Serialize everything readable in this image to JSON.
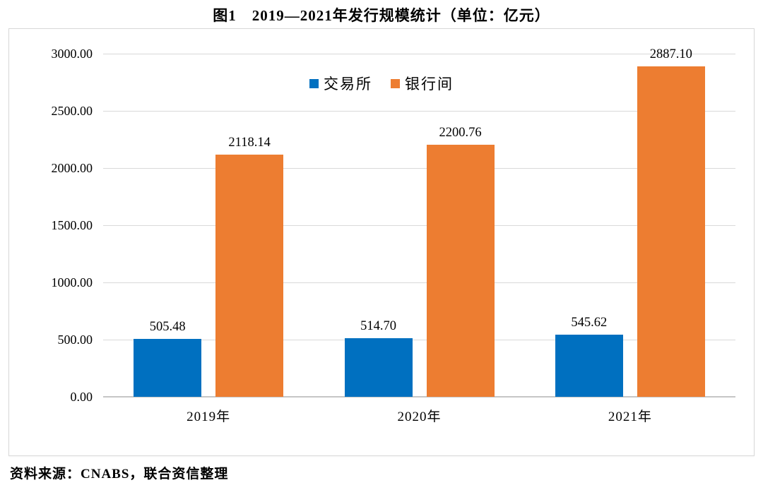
{
  "page": {
    "source": "资料来源：CNABS，联合资信整理"
  },
  "colors": {
    "series_exchange": "#0070C0",
    "series_interbank": "#ED7D31",
    "gridline": "#D9D9D9",
    "axisline": "#C6C6C6",
    "panel_border": "#D9D9D9",
    "text": "#000000"
  },
  "chart_data": {
    "type": "bar",
    "title": "图1　2019—2021年发行规模统计（单位：亿元）",
    "unit": "亿元",
    "categories": [
      "2019年",
      "2020年",
      "2021年"
    ],
    "series": [
      {
        "name": "交易所",
        "color": "#0070C0",
        "values": [
          505.48,
          514.7,
          545.62
        ]
      },
      {
        "name": "银行间",
        "color": "#ED7D31",
        "values": [
          2118.14,
          2200.76,
          2887.1
        ]
      }
    ],
    "data_labels": [
      [
        "505.48",
        "514.70",
        "545.62"
      ],
      [
        "2118.14",
        "2200.76",
        "2887.10"
      ]
    ],
    "ylim": [
      0,
      3000
    ],
    "ytick_step": 500,
    "ytick_labels": [
      "0.00",
      "500.00",
      "1000.00",
      "1500.00",
      "2000.00",
      "2500.00",
      "3000.00"
    ],
    "grid": true,
    "legend_position": "top-center",
    "xlabel": "",
    "ylabel": ""
  }
}
